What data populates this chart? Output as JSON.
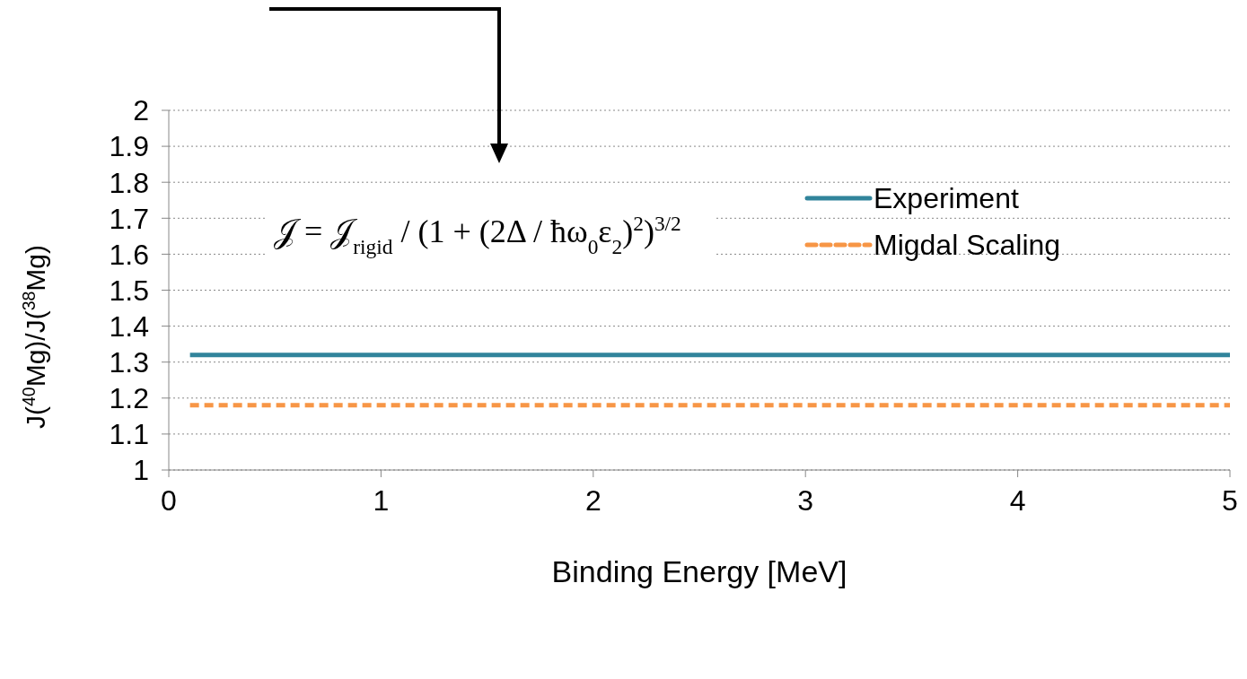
{
  "chart_data": {
    "type": "line",
    "xlabel": "Binding Energy [MeV]",
    "ylabel": "J($^{40}$Mg)/J($^{38}$Mg)",
    "x": [
      0.1,
      5
    ],
    "series": [
      {
        "name": "Experiment",
        "color": "#31849b",
        "values": [
          1.32,
          1.32
        ],
        "line_style": "solid"
      },
      {
        "name": "Migdal Scaling",
        "color": "#f79646",
        "values": [
          1.18,
          1.18
        ],
        "line_style": "dashed"
      }
    ],
    "xlim": [
      0,
      5
    ],
    "xticks": [
      0,
      1,
      2,
      3,
      4,
      5
    ],
    "ylim": [
      1,
      2
    ],
    "yticks": [
      1,
      1.1,
      1.2,
      1.3,
      1.4,
      1.5,
      1.6,
      1.7,
      1.8,
      1.9,
      2
    ],
    "grid": "y",
    "legend": "top right",
    "marker": "none",
    "annotations": [
      "𝒥 = 𝒥$_{rigid}$ / (1 + (2Δ / ħω$_{0}$ε$_{2}$)$^{2}$)$^{3/2}$"
    ]
  }
}
